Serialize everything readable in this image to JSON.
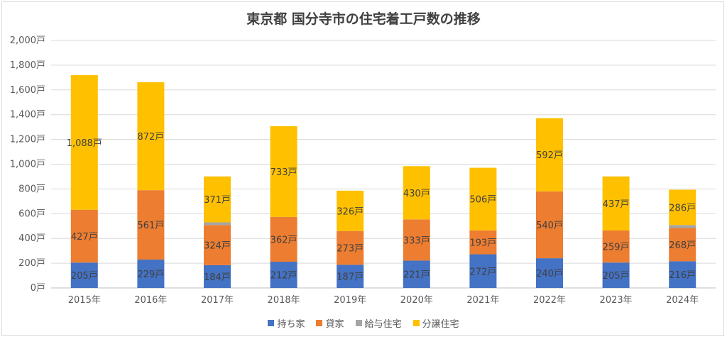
{
  "chart_data": {
    "type": "bar",
    "stacked": true,
    "title": "東京都 国分寺市の住宅着工戸数の推移",
    "categories": [
      "2015年",
      "2016年",
      "2017年",
      "2018年",
      "2019年",
      "2020年",
      "2021年",
      "2022年",
      "2023年",
      "2024年"
    ],
    "y_ticks": [
      "0戸",
      "200戸",
      "400戸",
      "600戸",
      "800戸",
      "1,000戸",
      "1,200戸",
      "1,400戸",
      "1,600戸",
      "1,800戸",
      "2,000戸"
    ],
    "ylim": [
      0,
      2000
    ],
    "grid": true,
    "legend_position": "bottom",
    "series": [
      {
        "name": "持ち家",
        "color": "#4472c4",
        "values": [
          205,
          229,
          184,
          212,
          187,
          221,
          272,
          240,
          205,
          216
        ],
        "labels": [
          "205戸",
          "229戸",
          "184戸",
          "212戸",
          "187戸",
          "221戸",
          "272戸",
          "240戸",
          "205戸",
          "216戸"
        ]
      },
      {
        "name": "貸家",
        "color": "#ed7d31",
        "values": [
          427,
          561,
          324,
          362,
          273,
          333,
          193,
          540,
          259,
          268
        ],
        "labels": [
          "427戸",
          "561戸",
          "324戸",
          "362戸",
          "273戸",
          "333戸",
          "193戸",
          "540戸",
          "259戸",
          "268戸"
        ]
      },
      {
        "name": "給与住宅",
        "color": "#a5a5a5",
        "values": [
          0,
          0,
          22,
          0,
          0,
          0,
          0,
          0,
          0,
          24
        ],
        "labels": [
          "",
          "",
          "",
          "",
          "",
          "",
          "",
          "",
          "",
          ""
        ]
      },
      {
        "name": "分譲住宅",
        "color": "#ffc000",
        "values": [
          1088,
          872,
          371,
          733,
          326,
          430,
          506,
          592,
          437,
          286
        ],
        "labels": [
          "1,088戸",
          "872戸",
          "371戸",
          "733戸",
          "326戸",
          "430戸",
          "506戸",
          "592戸",
          "437戸",
          "286戸"
        ]
      }
    ]
  }
}
